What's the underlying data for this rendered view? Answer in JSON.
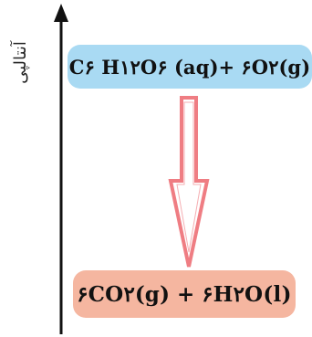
{
  "axis": {
    "label": "آنتالپی"
  },
  "reactants": {
    "formula": "C۶ H۱۲O۶ (aq)+ ۶O۲(g)"
  },
  "products": {
    "formula": "۶CO۲(g) + ۶H۲O(l)"
  },
  "colors": {
    "reactants_fill": "#a9daf3",
    "products_fill": "#f5b6a0",
    "arrow_stroke": "#ef7d83",
    "axis_color": "#111111"
  }
}
